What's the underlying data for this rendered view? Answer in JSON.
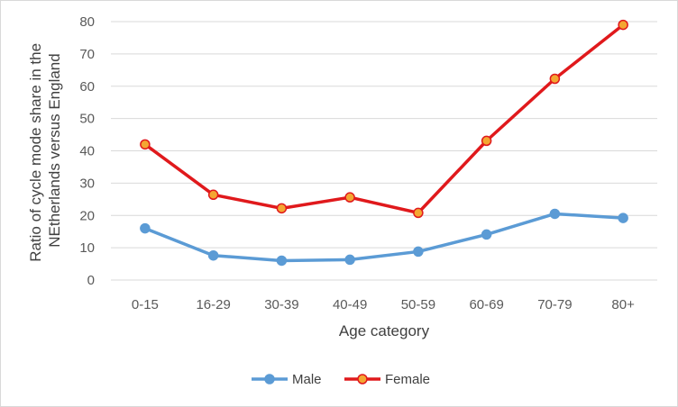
{
  "chart_data": {
    "type": "line",
    "title": "",
    "xlabel": "Age category",
    "ylabel_lines": [
      "Ratio of cycle mode share in the",
      "NEtherlands versus England"
    ],
    "categories": [
      "0-15",
      "16-29",
      "30-39",
      "40-49",
      "50-59",
      "60-69",
      "70-79",
      "80+"
    ],
    "ylim": [
      0,
      80
    ],
    "yticks": [
      0,
      10,
      20,
      30,
      40,
      50,
      60,
      70,
      80
    ],
    "grid": "horizontal",
    "legend": "bottom",
    "series": [
      {
        "name": "Male",
        "color": "#5b9bd5",
        "marker_fill": "#5b9bd5",
        "marker_stroke": "#5b9bd5",
        "values": [
          16,
          7.6,
          6,
          6.3,
          8.8,
          14.1,
          20.5,
          19.2
        ]
      },
      {
        "name": "Female",
        "color": "#e0191c",
        "marker_fill": "#f4a632",
        "marker_stroke": "#e0191c",
        "values": [
          42,
          26.4,
          22.2,
          25.6,
          20.8,
          43.1,
          62.3,
          79
        ]
      }
    ]
  }
}
